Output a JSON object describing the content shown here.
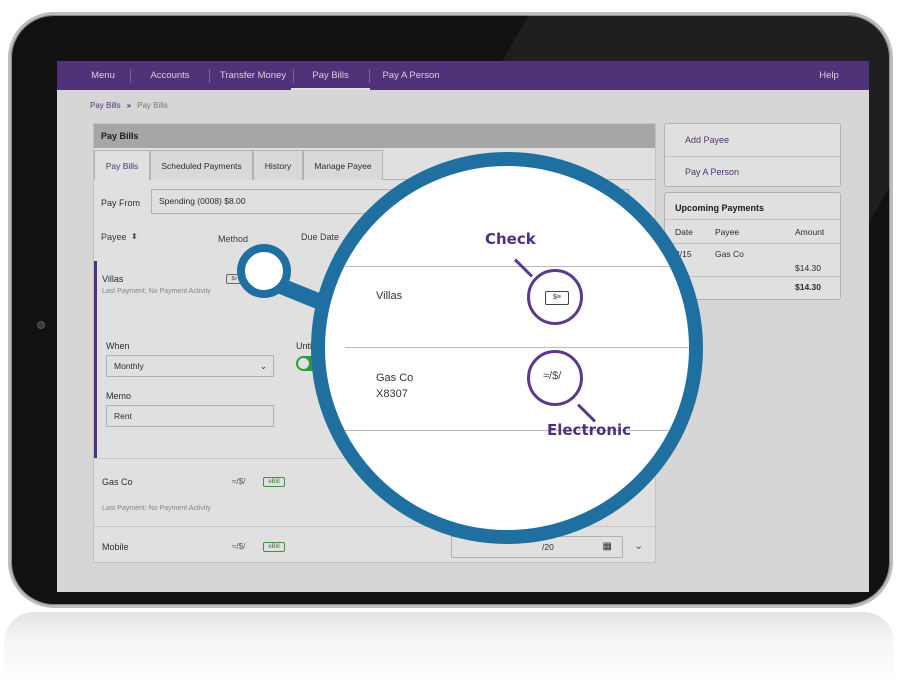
{
  "nav": {
    "items": [
      "Menu",
      "Accounts",
      "Transfer Money",
      "Pay Bills",
      "Pay A Person"
    ],
    "help": "Help",
    "active": "Pay Bills"
  },
  "breadcrumb": {
    "root": "Pay Bills",
    "current": "Pay Bills"
  },
  "panel": {
    "title": "Pay Bills",
    "tabs": [
      "Pay Bills",
      "Scheduled Payments",
      "History",
      "Manage Payee"
    ],
    "pay_from_label": "Pay From",
    "pay_from_value": "Spending (0008) $8.00",
    "columns": {
      "payee": "Payee",
      "method": "Method",
      "due_date": "Due Date"
    }
  },
  "rows": {
    "villas": {
      "name": "Villas",
      "last_payment": "Last Payment: No Payment Activity",
      "when_label": "When",
      "when_value": "Monthly",
      "until_label": "Until C",
      "memo_label": "Memo",
      "memo_value": "Rent"
    },
    "gasco": {
      "name": "Gas Co",
      "last_payment": "Last Payment: No Payment Activity",
      "ebill": "eBill"
    },
    "mobile": {
      "name": "Mobile",
      "ebill": "eBill",
      "date_partial": "/20"
    }
  },
  "sidebar": {
    "links": [
      "Add Payee",
      "Pay A Person"
    ],
    "upcoming_title": "Upcoming Payments",
    "upcoming_cols": [
      "Date",
      "Payee",
      "Amount"
    ],
    "upcoming_row": {
      "date": "2/15",
      "payee": "Gas Co",
      "amount": "$14.30"
    },
    "total": "$14.30"
  },
  "magnifier": {
    "row1": {
      "payee": "Villas"
    },
    "row2": {
      "payee": "Gas Co",
      "account": "X8307"
    },
    "check_label": "Check",
    "electronic_label": "Electronic"
  },
  "icons": {
    "check": "check-icon",
    "electronic": "electronic-payment-icon",
    "sort": "sort-icon",
    "calendar": "calendar-icon",
    "chevron": "chevron-down-icon"
  },
  "colors": {
    "brand_purple": "#5c3a8a",
    "magnifier_blue": "#1f6fa0",
    "toggle_green": "#3eab45"
  }
}
